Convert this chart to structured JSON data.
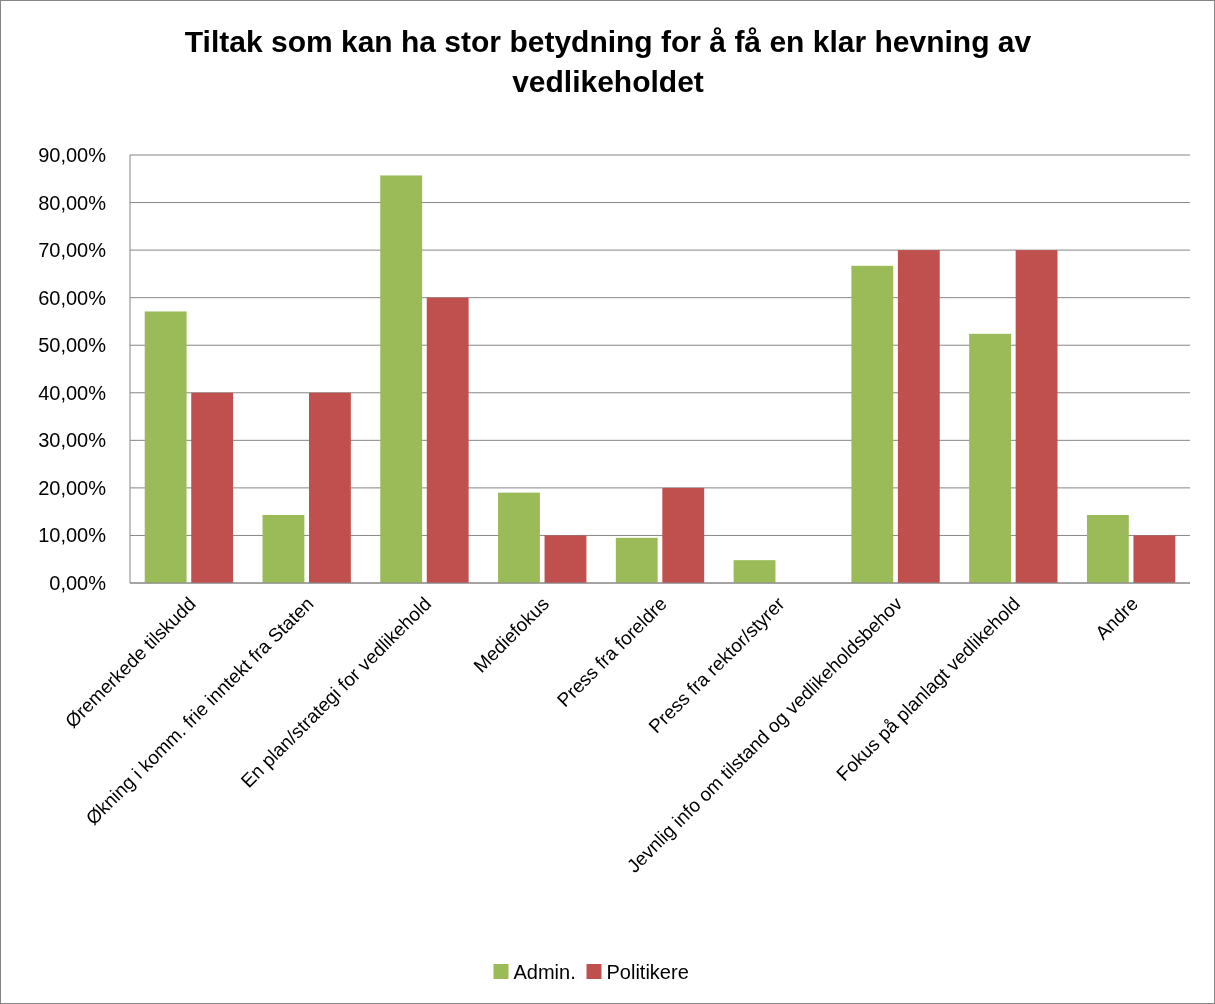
{
  "chart_data": {
    "type": "bar",
    "title": "Tiltak som kan ha stor betydning for å få en klar hevning av vedlikeholdet",
    "categories": [
      "Øremerkede tilskudd",
      "Økning i komm. frie inntekt fra Staten",
      "En plan/strategi for vedlikehold",
      "Mediefokus",
      "Press fra foreldre",
      "Press fra rektor/styrer",
      "Jevnlig info om tilstand og vedlikeholdsbehov",
      "Fokus på planlagt vedlikehold",
      "Andre"
    ],
    "series": [
      {
        "name": "Admin.",
        "color": "#9bbb59",
        "values": [
          57.1,
          14.3,
          85.7,
          19.0,
          9.5,
          4.8,
          66.7,
          52.4,
          14.3
        ]
      },
      {
        "name": "Politikere",
        "color": "#c0504d",
        "values": [
          40,
          40,
          60,
          10,
          20,
          0,
          70,
          70,
          10
        ]
      }
    ],
    "ylim": [
      0,
      90
    ],
    "yticks": [
      {
        "value": 0,
        "label": "0,00%"
      },
      {
        "value": 10,
        "label": "10,00%"
      },
      {
        "value": 20,
        "label": "20,00%"
      },
      {
        "value": 30,
        "label": "30,00%"
      },
      {
        "value": 40,
        "label": "40,00%"
      },
      {
        "value": 50,
        "label": "50,00%"
      },
      {
        "value": 60,
        "label": "60,00%"
      },
      {
        "value": 70,
        "label": "70,00%"
      },
      {
        "value": 80,
        "label": "80,00%"
      },
      {
        "value": 90,
        "label": "90,00%"
      }
    ],
    "grid": "y",
    "legend": "bottom"
  }
}
